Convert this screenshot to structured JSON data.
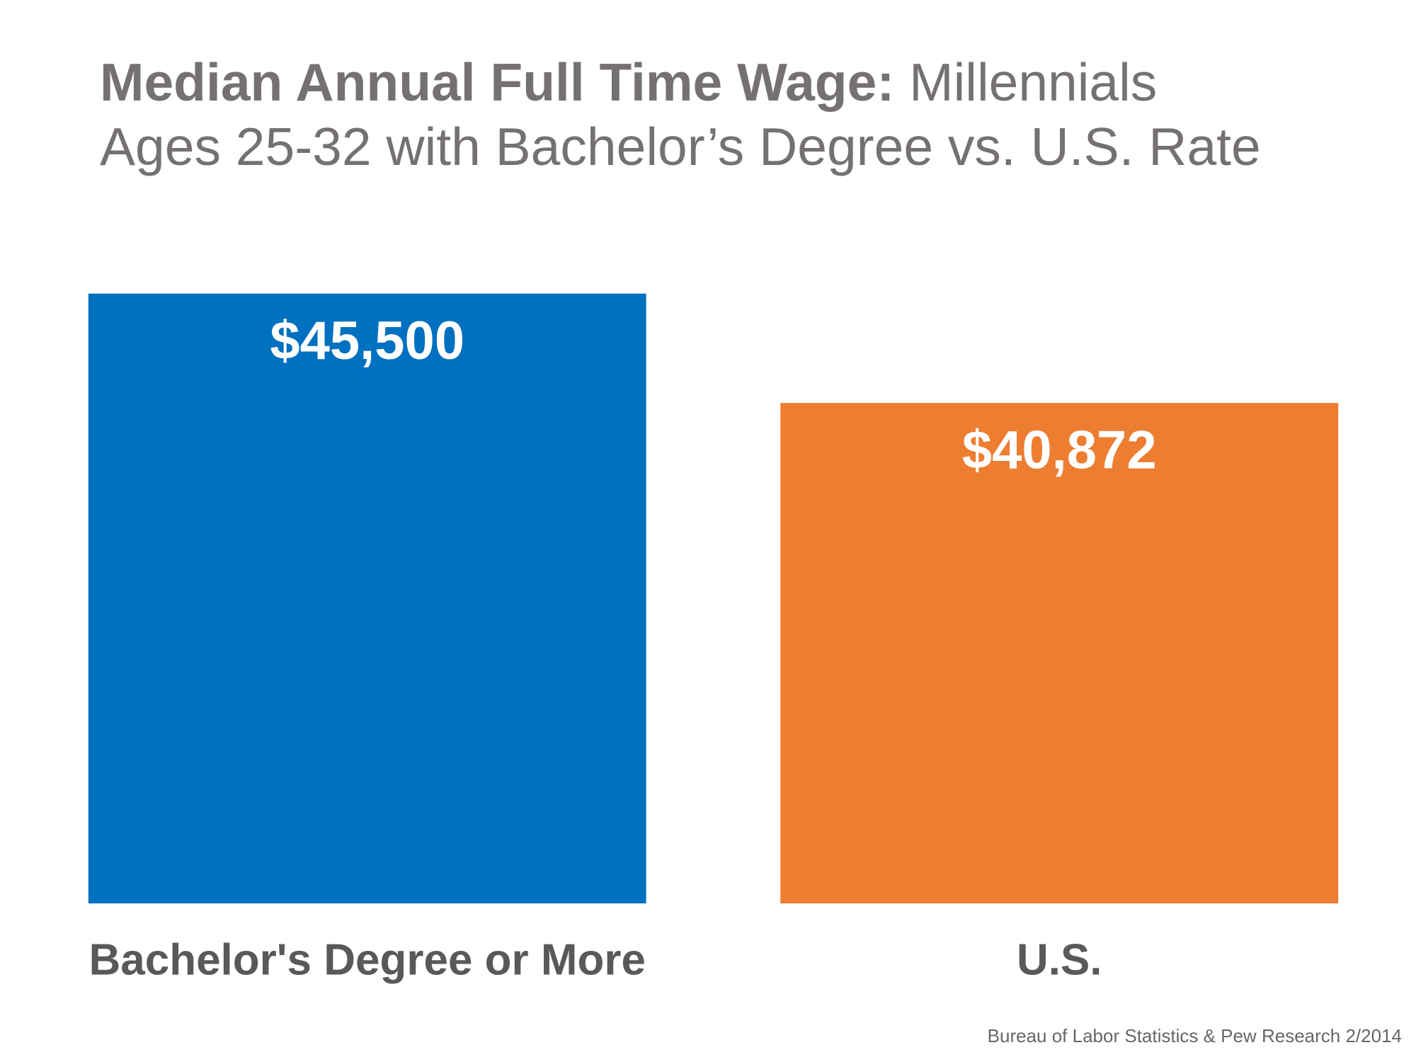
{
  "chart_data": {
    "type": "bar",
    "title": [
      "Median Annual Full Time Wage:",
      "Millennials",
      "Ages 25-32 with Bachelor’s Degree vs. U.S. Rate"
    ],
    "categories": [
      "Bachelor's Degree or More",
      "U.S."
    ],
    "values": [
      45500,
      40872
    ],
    "value_labels": [
      "$45,500",
      "$40,872"
    ],
    "colors": [
      "#0070c0",
      "#ed7d31"
    ],
    "ylim": [
      19700,
      46000
    ],
    "source": "Bureau of Labor Statistics & Pew Research 2/2014"
  }
}
